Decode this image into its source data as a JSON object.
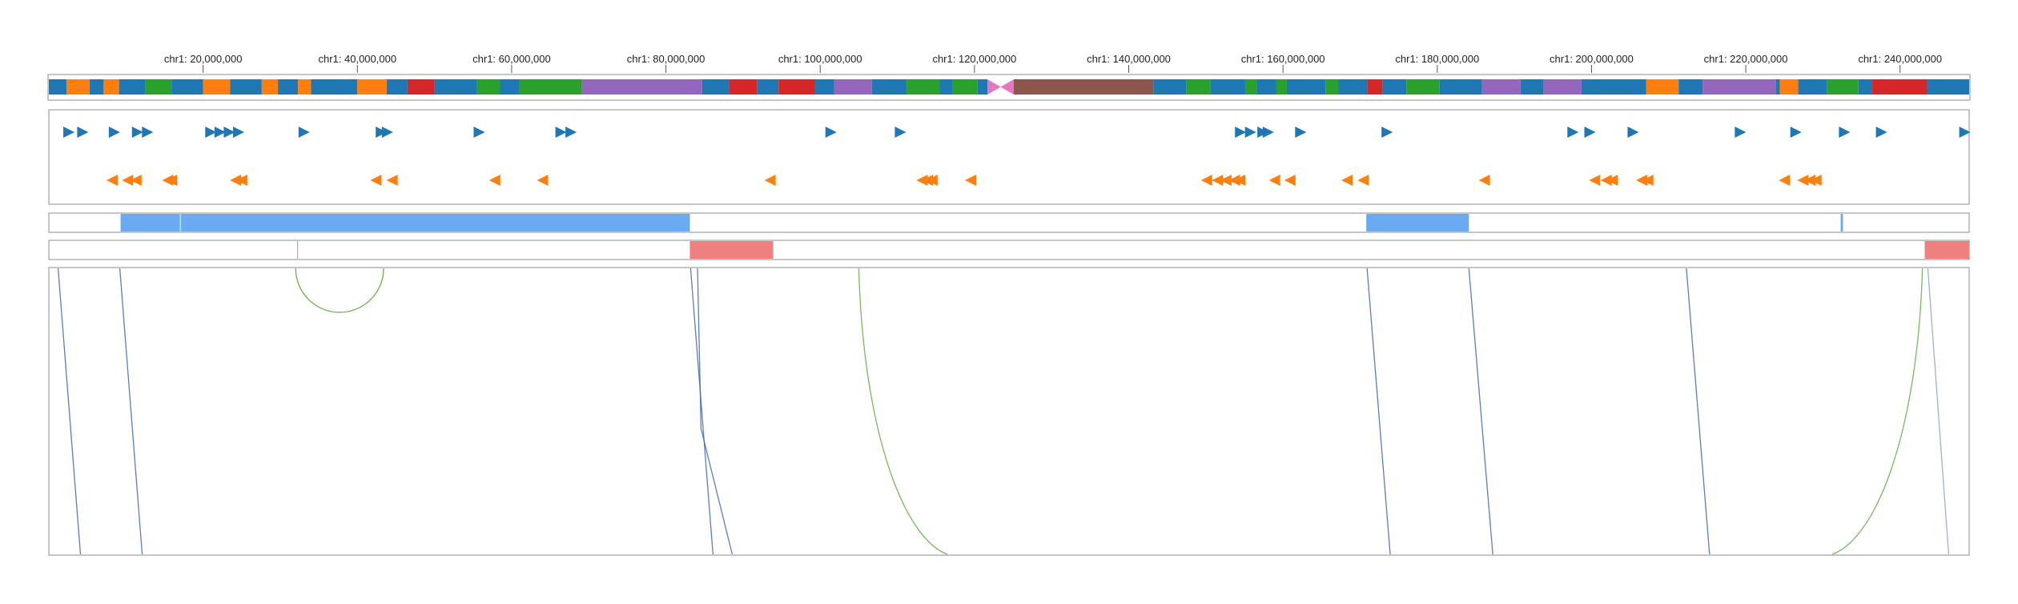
{
  "genome_view": {
    "chromosome": "chr1",
    "axis": {
      "ticks": [
        {
          "pos": 20000000,
          "label": "chr1: 20,000,000"
        },
        {
          "pos": 40000000,
          "label": "chr1: 40,000,000"
        },
        {
          "pos": 60000000,
          "label": "chr1: 60,000,000"
        },
        {
          "pos": 80000000,
          "label": "chr1: 80,000,000"
        },
        {
          "pos": 100000000,
          "label": "chr1: 100,000,000"
        },
        {
          "pos": 120000000,
          "label": "chr1: 120,000,000"
        },
        {
          "pos": 140000000,
          "label": "chr1: 140,000,000"
        },
        {
          "pos": 160000000,
          "label": "chr1: 160,000,000"
        },
        {
          "pos": 180000000,
          "label": "chr1: 180,000,000"
        },
        {
          "pos": 200000000,
          "label": "chr1: 200,000,000"
        },
        {
          "pos": 220000000,
          "label": "chr1: 220,000,000"
        },
        {
          "pos": 240000000,
          "label": "chr1: 240,000,000"
        }
      ]
    },
    "domain": [
      0,
      248956422
    ],
    "colors": {
      "blue": "#1f77b4",
      "orange": "#ff7f0e",
      "green": "#2ca02c",
      "red": "#d62728",
      "purple": "#9467bd",
      "brown": "#8c564b",
      "pink": "#e377c2",
      "light_blue": "#6aaaf0",
      "light_red": "#f08080",
      "arc_blue": "#4a6fb0",
      "arc_green": "#6ab04c"
    },
    "ideogram": [
      [
        0,
        2300000,
        "blue"
      ],
      [
        2300000,
        5300000,
        "orange"
      ],
      [
        5300000,
        7100000,
        "blue"
      ],
      [
        7100000,
        9100000,
        "orange"
      ],
      [
        9100000,
        12500000,
        "blue"
      ],
      [
        12500000,
        15900000,
        "green"
      ],
      [
        15900000,
        20000000,
        "blue"
      ],
      [
        20000000,
        23500000,
        "orange"
      ],
      [
        23500000,
        27600000,
        "blue"
      ],
      [
        27600000,
        29700000,
        "orange"
      ],
      [
        29700000,
        32300000,
        "blue"
      ],
      [
        32300000,
        34000000,
        "orange"
      ],
      [
        34000000,
        40000000,
        "blue"
      ],
      [
        40000000,
        43800000,
        "orange"
      ],
      [
        43800000,
        46500000,
        "blue"
      ],
      [
        46500000,
        50000000,
        "red"
      ],
      [
        50000000,
        55500000,
        "blue"
      ],
      [
        55500000,
        58500000,
        "green"
      ],
      [
        58500000,
        61000000,
        "blue"
      ],
      [
        61000000,
        69100000,
        "green"
      ],
      [
        69100000,
        84700000,
        "purple"
      ],
      [
        84700000,
        88200000,
        "blue"
      ],
      [
        88200000,
        91800000,
        "red"
      ],
      [
        91800000,
        94600000,
        "blue"
      ],
      [
        94600000,
        99300000,
        "red"
      ],
      [
        99300000,
        101800000,
        "blue"
      ],
      [
        101800000,
        106700000,
        "purple"
      ],
      [
        106700000,
        111200000,
        "blue"
      ],
      [
        111200000,
        115500000,
        "green"
      ],
      [
        115500000,
        117200000,
        "blue"
      ],
      [
        117200000,
        120400000,
        "green"
      ],
      [
        120400000,
        121700000,
        "blue"
      ]
    ],
    "ideogram_b": [
      [
        125100000,
        143200000,
        "brown"
      ],
      [
        143200000,
        147500000,
        "blue"
      ],
      [
        147500000,
        150600000,
        "green"
      ],
      [
        150600000,
        155100000,
        "blue"
      ],
      [
        155100000,
        156600000,
        "green"
      ],
      [
        156600000,
        159100000,
        "blue"
      ],
      [
        159100000,
        160500000,
        "green"
      ],
      [
        160500000,
        165500000,
        "blue"
      ],
      [
        165500000,
        167200000,
        "green"
      ],
      [
        167200000,
        170900000,
        "blue"
      ],
      [
        170900000,
        172900000,
        "red"
      ],
      [
        172900000,
        176000000,
        "blue"
      ],
      [
        176000000,
        180300000,
        "green"
      ],
      [
        180300000,
        185800000,
        "blue"
      ],
      [
        185800000,
        190800000,
        "purple"
      ],
      [
        190800000,
        193800000,
        "blue"
      ],
      [
        193800000,
        198700000,
        "purple"
      ],
      [
        198700000,
        207100000,
        "blue"
      ],
      [
        207100000,
        211300000,
        "orange"
      ],
      [
        211300000,
        214400000,
        "blue"
      ],
      [
        214400000,
        223900000,
        "purple"
      ],
      [
        223900000,
        224400000,
        "blue"
      ],
      [
        224400000,
        226800000,
        "orange"
      ],
      [
        226800000,
        230500000,
        "blue"
      ],
      [
        230500000,
        234600000,
        "green"
      ],
      [
        234600000,
        236400000,
        "blue"
      ],
      [
        236400000,
        243500000,
        "red"
      ],
      [
        243500000,
        248956422,
        "blue"
      ]
    ],
    "centromere": [
      121700000,
      125100000
    ],
    "forward_genes": [
      2600000,
      4400000,
      8500000,
      11500000,
      12800000,
      21000000,
      22200000,
      23400000,
      24600000,
      33100000,
      43100000,
      43900000,
      55800000,
      66400000,
      67700000,
      101400000,
      110400000,
      154500000,
      155800000,
      157400000,
      158100000,
      162300000,
      173500000,
      197600000,
      199800000,
      205400000,
      219300000,
      226500000,
      232800000,
      237600000,
      248400000
    ],
    "reverse_genes": [
      8200000,
      10200000,
      11300000,
      15400000,
      15900000,
      24200000,
      25000000,
      42400000,
      44500000,
      57800000,
      64000000,
      93500000,
      113200000,
      113900000,
      114500000,
      119500000,
      150100000,
      151500000,
      152600000,
      153700000,
      154400000,
      158900000,
      160900000,
      168300000,
      170400000,
      186100000,
      200400000,
      201900000,
      202700000,
      206500000,
      207300000,
      225000000,
      227400000,
      228300000,
      229100000
    ],
    "blue_intervals": [
      [
        9300000,
        17000000
      ],
      [
        17100000,
        83100000
      ],
      [
        170800000,
        184100000
      ],
      [
        232300000,
        232600000
      ]
    ],
    "red_intervals": [
      [
        32200000,
        32300000
      ],
      [
        83100000,
        93900000
      ],
      [
        243200000,
        248956422
      ]
    ],
    "arcs": [
      {
        "from": 1200000,
        "to": 4100000,
        "color": "arc_blue",
        "type": "line"
      },
      {
        "from": 9200000,
        "to": 12100000,
        "color": "arc_blue",
        "type": "line"
      },
      {
        "from": 83200000,
        "to": 86100000,
        "color": "arc_blue",
        "type": "line"
      },
      {
        "from": 84100000,
        "to": 88600000,
        "color": "arc_blue",
        "type": "bent"
      },
      {
        "from": 105000000,
        "to": 116500000,
        "color": "arc_green",
        "type": "curve"
      },
      {
        "from": 170900000,
        "to": 173900000,
        "color": "arc_blue",
        "type": "line"
      },
      {
        "from": 184100000,
        "to": 187200000,
        "color": "arc_blue",
        "type": "line"
      },
      {
        "from": 212300000,
        "to": 215300000,
        "color": "arc_blue",
        "type": "line"
      },
      {
        "from": 242900000,
        "to": 231200000,
        "color": "arc_green",
        "type": "curve"
      },
      {
        "from": 243600000,
        "to": 246300000,
        "color": "arc_blue",
        "type": "line",
        "light": true
      }
    ],
    "loop_arc": {
      "from": 32000000,
      "to": 43400000,
      "color": "arc_green"
    }
  }
}
